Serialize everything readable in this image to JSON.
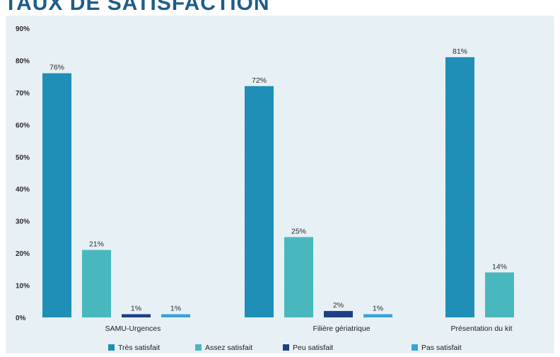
{
  "header": {
    "title": "TAUX DE SATISFACTION",
    "subtitle": ""
  },
  "chart_data": {
    "type": "bar",
    "title": "TAUX DE SATISFACTION",
    "xlabel": "",
    "ylabel": "",
    "categories": [
      "SAMU-Urgences",
      "Filière gériatrique",
      "Présentation du kit"
    ],
    "y_ticks": [
      "0%",
      "10%",
      "20%",
      "30%",
      "40%",
      "50%",
      "60%",
      "70%",
      "80%",
      "90%"
    ],
    "ylim": [
      0,
      90
    ],
    "grid": true,
    "legend_position": "bottom",
    "series": [
      {
        "name": "Très satisfait",
        "color": "#1f8fb8",
        "values": [
          76,
          72,
          81
        ],
        "labels": [
          "76%",
          "72%",
          "81%"
        ]
      },
      {
        "name": "Assez satisfait",
        "color": "#49b8be",
        "values": [
          21,
          25,
          14
        ],
        "labels": [
          "21%",
          "25%",
          "14%"
        ]
      },
      {
        "name": "Peu satisfait",
        "color": "#1d3f86",
        "values": [
          1,
          2,
          null
        ],
        "labels": [
          "1%",
          "2%",
          ""
        ]
      },
      {
        "name": "Pas satisfait",
        "color": "#3aa3d9",
        "values": [
          1,
          1,
          null
        ],
        "labels": [
          "1%",
          "1%",
          ""
        ]
      }
    ]
  }
}
